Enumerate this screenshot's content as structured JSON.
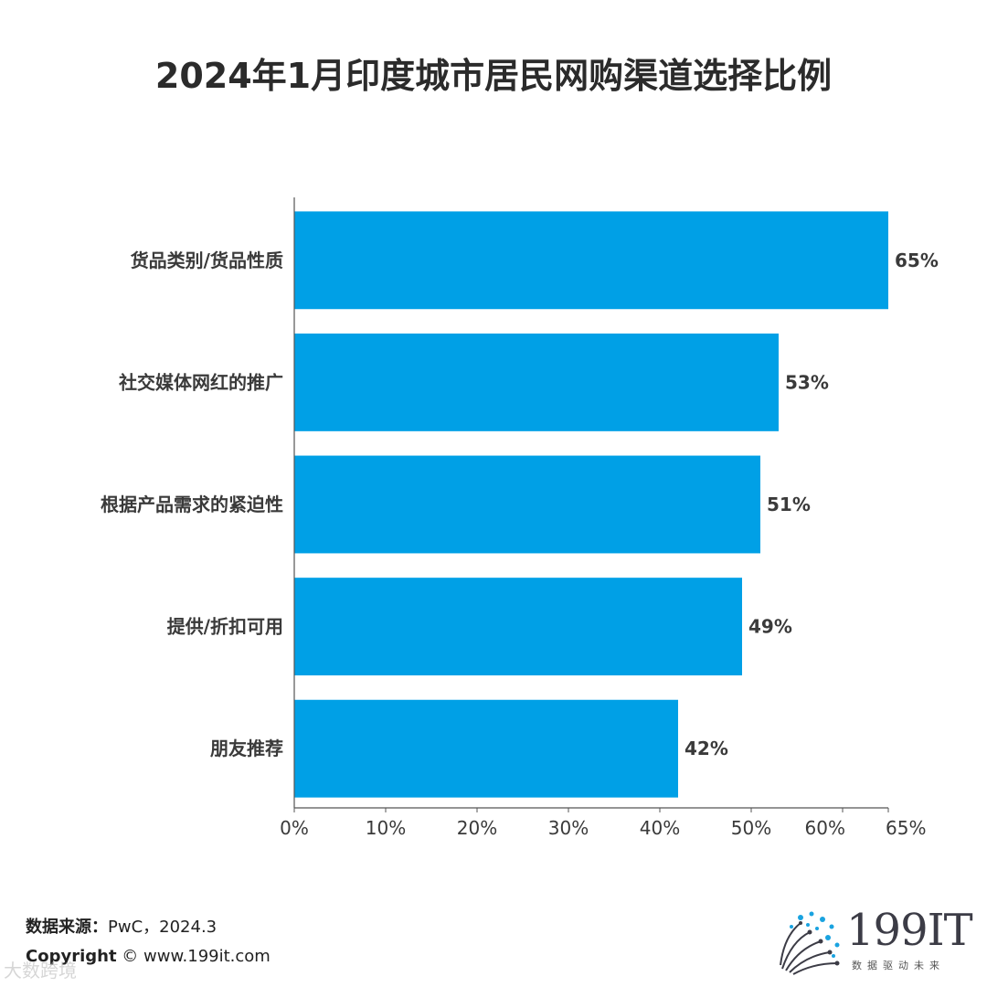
{
  "chart_data": {
    "type": "bar",
    "orientation": "horizontal",
    "title": "2024年1月印度城市居民网购渠道选择比例",
    "categories": [
      "货品类别/货品性质",
      "社交媒体网红的推广",
      "根据产品需求的紧迫性",
      "提供/折扣可用",
      "朋友推荐"
    ],
    "values": [
      65,
      53,
      51,
      49,
      42
    ],
    "value_labels": [
      "65%",
      "53%",
      "51%",
      "49%",
      "42%"
    ],
    "x_ticks": [
      0,
      10,
      20,
      30,
      40,
      50,
      60,
      65
    ],
    "x_tick_labels": [
      "0%",
      "10%",
      "20%",
      "30%",
      "40%",
      "50%",
      "60%",
      "65%"
    ],
    "xlim": [
      0,
      65
    ],
    "grid": false,
    "bar_color": "#00a0e6"
  },
  "footer": {
    "source_label": "数据来源：",
    "source_value": "PwC，2024.3",
    "copyright_label": "Copyright",
    "copyright_value": "© www.199it.com"
  },
  "logo": {
    "text": "199IT",
    "tagline": "数据驱动未来"
  },
  "watermark": "大数跨境"
}
